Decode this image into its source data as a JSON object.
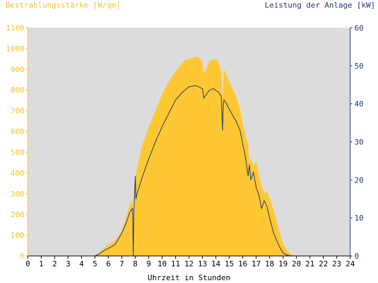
{
  "chart_data": {
    "type": "area",
    "ylabel_left": "Bestrahlungsstärke [W/qm]",
    "ylabel_right": "Leistung der Anlage [kW]",
    "xlabel": "Uhrzeit in Stunden",
    "xlim": [
      0,
      24
    ],
    "ylim_left": [
      0,
      1100
    ],
    "ylim_right": [
      0,
      60
    ],
    "x_ticks": [
      "0",
      "1",
      "2",
      "3",
      "4",
      "5",
      "6",
      "7",
      "8",
      "9",
      "10",
      "11",
      "12",
      "13",
      "14",
      "15",
      "16",
      "17",
      "18",
      "19",
      "20",
      "21",
      "22",
      "23",
      "24"
    ],
    "y_ticks_left": [
      "0",
      "100",
      "200",
      "300",
      "400",
      "500",
      "600",
      "700",
      "800",
      "900",
      "1000",
      "1100"
    ],
    "y_ticks_right": [
      "0",
      "10",
      "20",
      "30",
      "40",
      "50",
      "60"
    ],
    "colors": {
      "irradiance": "#ffc832",
      "power": "#1f3a7a",
      "background": "#dcdcdc",
      "left_axis": "#f5c030",
      "right_axis": "#1f3a7a"
    },
    "series": [
      {
        "axis": "left",
        "style": "area",
        "x": [
          0,
          5.0,
          5.3,
          5.7,
          6.0,
          6.5,
          7.0,
          7.3,
          7.6,
          7.8,
          7.85,
          7.9,
          8.0,
          8.2,
          8.5,
          9.0,
          9.5,
          10.0,
          10.5,
          11.0,
          11.5,
          11.7,
          12.0,
          12.5,
          12.8,
          13.0,
          13.1,
          13.3,
          13.5,
          13.8,
          14.0,
          14.2,
          14.4,
          14.5,
          14.6,
          14.8,
          15.0,
          15.5,
          15.8,
          16.0,
          16.2,
          16.4,
          16.5,
          16.6,
          16.8,
          17.0,
          17.2,
          17.4,
          17.6,
          17.8,
          18.0,
          18.3,
          18.6,
          18.8,
          19.0,
          19.3,
          19.6,
          19.8,
          20.0,
          24.0
        ],
        "y": [
          0,
          0,
          15,
          40,
          55,
          75,
          120,
          185,
          250,
          270,
          20,
          320,
          380,
          440,
          530,
          620,
          700,
          780,
          840,
          890,
          930,
          945,
          950,
          960,
          955,
          935,
          880,
          900,
          940,
          945,
          950,
          935,
          890,
          760,
          900,
          870,
          840,
          770,
          710,
          640,
          580,
          540,
          440,
          480,
          430,
          460,
          390,
          340,
          300,
          310,
          280,
          220,
          150,
          100,
          60,
          25,
          10,
          5,
          0,
          0
        ]
      },
      {
        "axis": "right",
        "style": "line",
        "x": [
          0,
          5.0,
          5.3,
          5.7,
          6.0,
          6.5,
          7.0,
          7.3,
          7.6,
          7.8,
          7.85,
          7.9,
          8.0,
          8.05,
          8.1,
          8.5,
          9.0,
          9.5,
          10.0,
          10.5,
          11.0,
          11.5,
          12.0,
          12.5,
          12.8,
          13.0,
          13.1,
          13.3,
          13.5,
          13.8,
          14.0,
          14.2,
          14.4,
          14.5,
          14.55,
          14.6,
          14.8,
          15.0,
          15.5,
          15.8,
          16.0,
          16.2,
          16.4,
          16.5,
          16.6,
          16.8,
          17.0,
          17.2,
          17.4,
          17.6,
          17.8,
          18.0,
          18.3,
          18.6,
          18.8,
          19.0,
          19.3,
          19.6,
          19.8,
          20.0,
          24.0
        ],
        "y": [
          0,
          0,
          0.5,
          1.5,
          2.0,
          3.0,
          6.0,
          8.5,
          11.5,
          12.5,
          0,
          12.0,
          21.0,
          15.0,
          16.0,
          20.5,
          25.5,
          30.0,
          34.0,
          37.5,
          41.0,
          43.0,
          44.5,
          44.8,
          44.3,
          44.0,
          41.5,
          42.5,
          43.5,
          44.0,
          43.5,
          43.0,
          42.0,
          33.0,
          40.0,
          41.0,
          40.0,
          38.5,
          35.5,
          33.0,
          29.5,
          26.0,
          21.0,
          24.0,
          20.0,
          22.0,
          18.0,
          16.0,
          12.5,
          14.5,
          13.0,
          10.0,
          6.0,
          3.5,
          2.0,
          0.8,
          0.2,
          0,
          0,
          0,
          0
        ]
      }
    ]
  }
}
